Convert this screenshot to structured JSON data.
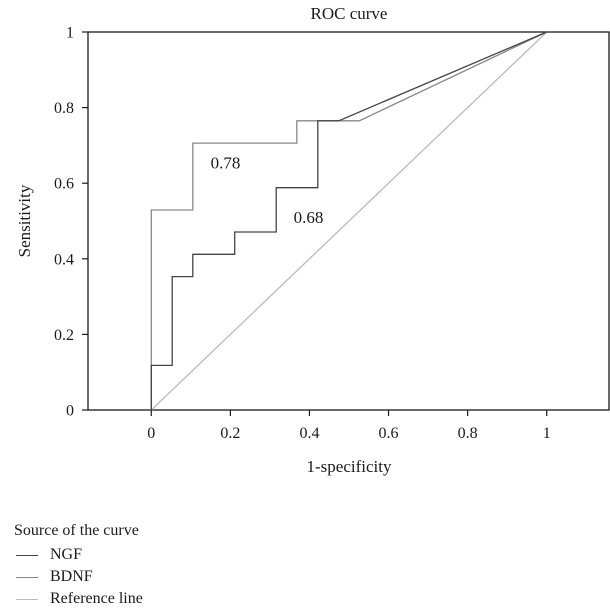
{
  "chart_data": {
    "type": "line",
    "title": "ROC curve",
    "xlabel": "1-specificity",
    "ylabel": "Sensitivity",
    "xlim": [
      -0.16,
      1.16
    ],
    "ylim": [
      0,
      1
    ],
    "xticks": [
      0,
      0.2,
      0.4,
      0.6,
      0.8,
      1
    ],
    "xtick_labels": [
      "0",
      "0.2",
      "0.4",
      "0.6",
      "0.8",
      "1"
    ],
    "yticks": [
      0,
      0.2,
      0.4,
      0.6,
      0.8,
      1
    ],
    "ytick_labels": [
      "0",
      "0.2",
      "0.4",
      "0.6",
      "0.8",
      "1"
    ],
    "grid": false,
    "legend_title": "Source of the curve",
    "legend_placement": "bottom-left",
    "series": [
      {
        "name": "NGF",
        "color": "#444444",
        "x": [
          0,
          0,
          0.053,
          0.053,
          0.105,
          0.105,
          0.211,
          0.211,
          0.316,
          0.316,
          0.421,
          0.421,
          0.474,
          1
        ],
        "y": [
          0,
          0.118,
          0.118,
          0.353,
          0.353,
          0.412,
          0.412,
          0.471,
          0.471,
          0.588,
          0.588,
          0.765,
          0.765,
          1
        ]
      },
      {
        "name": "BDNF",
        "color": "#888888",
        "x": [
          0,
          0,
          0.105,
          0.105,
          0.368,
          0.368,
          0.526,
          1
        ],
        "y": [
          0,
          0.529,
          0.529,
          0.706,
          0.706,
          0.765,
          0.765,
          1
        ]
      },
      {
        "name": "Reference line",
        "color": "#bbbbbb",
        "x": [
          0,
          1
        ],
        "y": [
          0,
          1
        ]
      }
    ],
    "annotations": [
      {
        "text": "0.78",
        "x": 0.15,
        "y": 0.655
      },
      {
        "text": "0.68",
        "x": 0.36,
        "y": 0.51
      }
    ]
  }
}
